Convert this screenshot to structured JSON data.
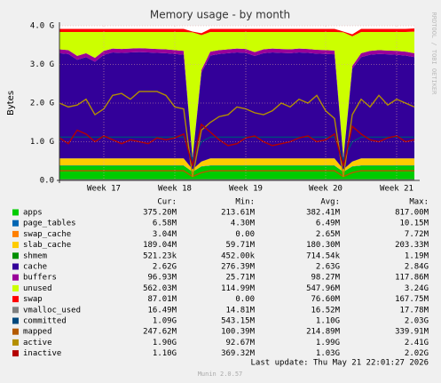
{
  "chart_data": {
    "type": "area",
    "title": "Memory usage - by month",
    "y_label": "Bytes",
    "watermark": "RRDTOOL / TOBI OETIKER",
    "categories": [
      null,
      null,
      null,
      null,
      null,
      "Week 17",
      null,
      null,
      null,
      null,
      null,
      null,
      null,
      "Week 18",
      null,
      null,
      null,
      null,
      null,
      null,
      null,
      "Week 19",
      null,
      null,
      null,
      null,
      null,
      null,
      null,
      null,
      "Week 20",
      null,
      null,
      null,
      null,
      null,
      null,
      null,
      "Week 21",
      null,
      null
    ],
    "ylim": [
      0,
      4
    ],
    "yticks": [
      {
        "value": 0,
        "label": "0.0"
      },
      {
        "value": 1,
        "label": "1.0 G"
      },
      {
        "value": 2,
        "label": "2.0 G"
      },
      {
        "value": 3,
        "label": "3.0 G"
      },
      {
        "value": 4,
        "label": "4.0 G"
      }
    ],
    "grid": true,
    "series": [
      {
        "name": "apps",
        "color": "#00cc00",
        "draw": "area",
        "values": [
          0.38,
          0.38,
          0.38,
          0.38,
          0.38,
          0.38,
          0.38,
          0.38,
          0.38,
          0.38,
          0.38,
          0.38,
          0.38,
          0.38,
          0.38,
          0.22,
          0.36,
          0.38,
          0.38,
          0.38,
          0.38,
          0.38,
          0.38,
          0.38,
          0.38,
          0.38,
          0.38,
          0.38,
          0.38,
          0.38,
          0.38,
          0.38,
          0.22,
          0.36,
          0.38,
          0.38,
          0.38,
          0.38,
          0.38,
          0.38,
          0.38
        ]
      },
      {
        "name": "page_tables",
        "color": "#0066b3",
        "draw": "area",
        "values": [
          0.0066,
          0.0066,
          0.0066,
          0.0066,
          0.0066,
          0.0066,
          0.0066,
          0.0066,
          0.0066,
          0.0066,
          0.0066,
          0.0066,
          0.0066,
          0.0066,
          0.0066,
          0.0043,
          0.006,
          0.0066,
          0.0066,
          0.0066,
          0.0066,
          0.0066,
          0.0066,
          0.0066,
          0.0066,
          0.0066,
          0.0066,
          0.0066,
          0.0066,
          0.0066,
          0.0066,
          0.0066,
          0.0043,
          0.006,
          0.0066,
          0.0066,
          0.0066,
          0.0066,
          0.0066,
          0.0066,
          0.0066
        ]
      },
      {
        "name": "swap_cache",
        "color": "#ff8000",
        "draw": "area",
        "values": [
          0.003,
          0.003,
          0.003,
          0.003,
          0.003,
          0.003,
          0.003,
          0.003,
          0.003,
          0.003,
          0.003,
          0.003,
          0.003,
          0.003,
          0.003,
          0,
          0.001,
          0.003,
          0.003,
          0.003,
          0.003,
          0.003,
          0.003,
          0.003,
          0.003,
          0.003,
          0.003,
          0.003,
          0.003,
          0.003,
          0.003,
          0.003,
          0,
          0.001,
          0.003,
          0.003,
          0.003,
          0.003,
          0.003,
          0.003,
          0.003
        ]
      },
      {
        "name": "slab_cache",
        "color": "#ffcc00",
        "draw": "area",
        "values": [
          0.18,
          0.18,
          0.18,
          0.18,
          0.18,
          0.18,
          0.18,
          0.18,
          0.18,
          0.18,
          0.18,
          0.18,
          0.18,
          0.18,
          0.18,
          0.06,
          0.12,
          0.18,
          0.18,
          0.18,
          0.18,
          0.18,
          0.18,
          0.18,
          0.18,
          0.18,
          0.18,
          0.18,
          0.18,
          0.18,
          0.18,
          0.18,
          0.06,
          0.12,
          0.18,
          0.18,
          0.18,
          0.18,
          0.18,
          0.18,
          0.18
        ]
      },
      {
        "name": "shmem",
        "color": "#008f00",
        "draw": "area",
        "values": [
          0.0005,
          0.0005,
          0.0005,
          0.0005,
          0.0005,
          0.0005,
          0.0005,
          0.0005,
          0.0005,
          0.0005,
          0.0005,
          0.0005,
          0.0005,
          0.0005,
          0.0005,
          0.0005,
          0.0005,
          0.0005,
          0.0005,
          0.0005,
          0.0005,
          0.0005,
          0.0005,
          0.0005,
          0.0005,
          0.0005,
          0.0005,
          0.0005,
          0.0005,
          0.0005,
          0.0005,
          0.0005,
          0.0005,
          0.0005,
          0.0005,
          0.0005,
          0.0005,
          0.0005,
          0.0005,
          0.0005,
          0.0005
        ]
      },
      {
        "name": "cache",
        "color": "#330099",
        "draw": "area",
        "values": [
          2.72,
          2.7,
          2.55,
          2.62,
          2.5,
          2.68,
          2.74,
          2.73,
          2.74,
          2.75,
          2.74,
          2.73,
          2.72,
          2.7,
          2.68,
          0.28,
          2.3,
          2.66,
          2.7,
          2.72,
          2.74,
          2.73,
          2.65,
          2.72,
          2.74,
          2.73,
          2.72,
          2.74,
          2.73,
          2.71,
          2.7,
          2.69,
          0.28,
          2.4,
          2.62,
          2.68,
          2.7,
          2.69,
          2.68,
          2.66,
          2.62
        ]
      },
      {
        "name": "buffers",
        "color": "#990099",
        "draw": "area",
        "values": [
          0.1,
          0.1,
          0.1,
          0.1,
          0.1,
          0.1,
          0.1,
          0.1,
          0.1,
          0.1,
          0.1,
          0.1,
          0.1,
          0.1,
          0.1,
          0.026,
          0.07,
          0.1,
          0.1,
          0.1,
          0.1,
          0.1,
          0.1,
          0.1,
          0.1,
          0.1,
          0.1,
          0.1,
          0.1,
          0.1,
          0.1,
          0.1,
          0.026,
          0.07,
          0.1,
          0.1,
          0.1,
          0.1,
          0.1,
          0.1,
          0.1
        ]
      },
      {
        "name": "unused",
        "color": "#ccff00",
        "draw": "area",
        "values": [
          0.45,
          0.47,
          0.62,
          0.55,
          0.67,
          0.49,
          0.43,
          0.44,
          0.43,
          0.42,
          0.43,
          0.44,
          0.45,
          0.47,
          0.49,
          3.24,
          0.9,
          0.51,
          0.47,
          0.45,
          0.43,
          0.44,
          0.52,
          0.45,
          0.43,
          0.44,
          0.45,
          0.43,
          0.44,
          0.46,
          0.47,
          0.48,
          3.24,
          0.77,
          0.55,
          0.49,
          0.47,
          0.48,
          0.49,
          0.51,
          0.56
        ]
      },
      {
        "name": "swap",
        "color": "#ff0000",
        "draw": "area",
        "values": [
          0.08,
          0.08,
          0.08,
          0.08,
          0.08,
          0.08,
          0.08,
          0.08,
          0.08,
          0.08,
          0.08,
          0.08,
          0.08,
          0.08,
          0.08,
          0.02,
          0.05,
          0.08,
          0.08,
          0.08,
          0.08,
          0.08,
          0.08,
          0.08,
          0.08,
          0.08,
          0.08,
          0.08,
          0.08,
          0.08,
          0.08,
          0.08,
          0.02,
          0.05,
          0.08,
          0.08,
          0.08,
          0.08,
          0.08,
          0.08,
          0.08
        ]
      },
      {
        "name": "vmalloc_used",
        "color": "#808080",
        "draw": "line",
        "values": [
          0.0165,
          0.0165,
          0.0165,
          0.0165,
          0.0165,
          0.0165,
          0.0165,
          0.0165,
          0.0165,
          0.0165,
          0.0165,
          0.0165,
          0.0165,
          0.0165,
          0.0165,
          0.0165,
          0.0165,
          0.0165,
          0.0165,
          0.0165,
          0.0165,
          0.0165,
          0.0165,
          0.0165,
          0.0165,
          0.0165,
          0.0165,
          0.0165,
          0.0165,
          0.0165,
          0.0165,
          0.0165,
          0.0165,
          0.0165,
          0.0165,
          0.0165,
          0.0165,
          0.0165,
          0.0165,
          0.0165,
          0.0165
        ]
      },
      {
        "name": "committed",
        "color": "#00487d",
        "draw": "line",
        "values": [
          1.12,
          1.12,
          1.12,
          1.12,
          1.12,
          1.12,
          1.12,
          1.12,
          1.12,
          1.12,
          1.12,
          1.12,
          1.12,
          1.12,
          1.12,
          0.54,
          1.0,
          1.12,
          1.12,
          1.12,
          1.12,
          1.12,
          1.12,
          1.12,
          1.12,
          1.12,
          1.12,
          1.12,
          1.12,
          1.12,
          1.12,
          1.12,
          0.54,
          1.0,
          1.12,
          1.12,
          1.12,
          1.12,
          1.12,
          1.12,
          1.12
        ]
      },
      {
        "name": "mapped",
        "color": "#b35a00",
        "draw": "line",
        "values": [
          0.25,
          0.25,
          0.25,
          0.25,
          0.25,
          0.25,
          0.25,
          0.25,
          0.25,
          0.25,
          0.25,
          0.25,
          0.25,
          0.25,
          0.25,
          0.1,
          0.2,
          0.25,
          0.25,
          0.25,
          0.25,
          0.25,
          0.25,
          0.25,
          0.25,
          0.25,
          0.25,
          0.25,
          0.25,
          0.25,
          0.25,
          0.25,
          0.1,
          0.2,
          0.25,
          0.25,
          0.25,
          0.25,
          0.25,
          0.25,
          0.25
        ]
      },
      {
        "name": "active",
        "color": "#b38f00",
        "draw": "line",
        "values": [
          2.0,
          1.9,
          1.95,
          2.1,
          1.7,
          1.85,
          2.2,
          2.25,
          2.1,
          2.3,
          2.3,
          2.3,
          2.2,
          1.9,
          1.85,
          0.09,
          1.3,
          1.5,
          1.65,
          1.7,
          1.9,
          1.85,
          1.75,
          1.7,
          1.8,
          2.0,
          1.9,
          2.1,
          2.0,
          2.2,
          1.8,
          1.6,
          0.09,
          1.7,
          2.1,
          1.9,
          2.2,
          1.95,
          2.1,
          2.0,
          1.9
        ]
      },
      {
        "name": "inactive",
        "color": "#b30000",
        "draw": "line",
        "values": [
          1.1,
          0.95,
          1.3,
          1.2,
          1.0,
          1.15,
          1.05,
          0.95,
          1.05,
          1.0,
          0.95,
          1.1,
          1.05,
          1.1,
          1.2,
          0.37,
          1.45,
          1.25,
          1.05,
          0.9,
          0.95,
          1.1,
          1.15,
          1.0,
          0.9,
          0.95,
          1.0,
          1.1,
          1.15,
          1.0,
          1.05,
          1.2,
          0.37,
          1.4,
          1.2,
          1.05,
          1.0,
          1.1,
          1.15,
          1.0,
          1.05
        ]
      }
    ]
  },
  "legend_table": {
    "headers": [
      "Cur:",
      "Min:",
      "Avg:",
      "Max:"
    ],
    "rows": [
      [
        "375.20M",
        "213.61M",
        "382.41M",
        "817.00M"
      ],
      [
        "6.58M",
        "4.30M",
        "6.49M",
        "10.15M"
      ],
      [
        "3.04M",
        "0.00",
        "2.65M",
        "7.72M"
      ],
      [
        "189.04M",
        "59.71M",
        "180.30M",
        "203.33M"
      ],
      [
        "521.23k",
        "452.00k",
        "714.54k",
        "1.19M"
      ],
      [
        "2.62G",
        "276.39M",
        "2.63G",
        "2.84G"
      ],
      [
        "96.93M",
        "25.71M",
        "98.27M",
        "117.86M"
      ],
      [
        "562.03M",
        "114.99M",
        "547.96M",
        "3.24G"
      ],
      [
        "87.01M",
        "0.00",
        "76.60M",
        "167.75M"
      ],
      [
        "16.49M",
        "14.81M",
        "16.52M",
        "17.78M"
      ],
      [
        "1.09G",
        "543.15M",
        "1.10G",
        "2.03G"
      ],
      [
        "247.62M",
        "100.39M",
        "214.89M",
        "339.91M"
      ],
      [
        "1.90G",
        "92.67M",
        "1.99G",
        "2.41G"
      ],
      [
        "1.10G",
        "369.32M",
        "1.03G",
        "2.02G"
      ]
    ]
  },
  "footer": {
    "last_update": "Last update: Thu May 21 22:01:27 2026",
    "version": "Munin 2.0.57"
  }
}
